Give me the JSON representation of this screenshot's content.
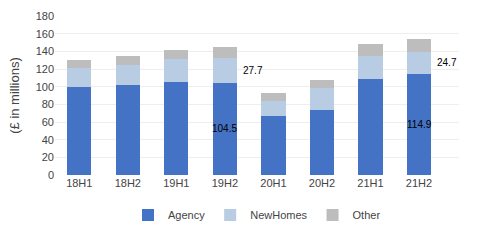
{
  "chart_data": {
    "type": "bar",
    "stacked": true,
    "categories": [
      "18H1",
      "18H2",
      "19H1",
      "19H2",
      "20H1",
      "20H2",
      "21H1",
      "21H2"
    ],
    "series": [
      {
        "name": "Agency",
        "color": "#4472C4",
        "values": [
          100.0,
          102.0,
          105.0,
          104.5,
          67.0,
          74.0,
          109.0,
          114.9
        ]
      },
      {
        "name": "NewHomes",
        "color": "#B8CCE4",
        "values": [
          21.0,
          23.0,
          26.0,
          27.7,
          17.0,
          24.0,
          26.0,
          24.7
        ]
      },
      {
        "name": "Other",
        "color": "#BDBDBD",
        "values": [
          9.0,
          10.0,
          11.0,
          13.0,
          9.0,
          10.0,
          13.0,
          14.0
        ]
      }
    ],
    "ylabel": "(£ in millions)",
    "ylim": [
      0,
      180
    ],
    "yticks": [
      0,
      20,
      40,
      60,
      80,
      100,
      120,
      140,
      160,
      180
    ],
    "grid": true,
    "legend": "bottom",
    "annotations": [
      {
        "text": "104.5",
        "category": "19H2",
        "series": "Agency"
      },
      {
        "text": "27.7",
        "category": "19H2",
        "series": "NewHomes"
      },
      {
        "text": "114.9",
        "category": "21H2",
        "series": "Agency"
      },
      {
        "text": "24.7",
        "category": "21H2",
        "series": "NewHomes"
      }
    ]
  }
}
